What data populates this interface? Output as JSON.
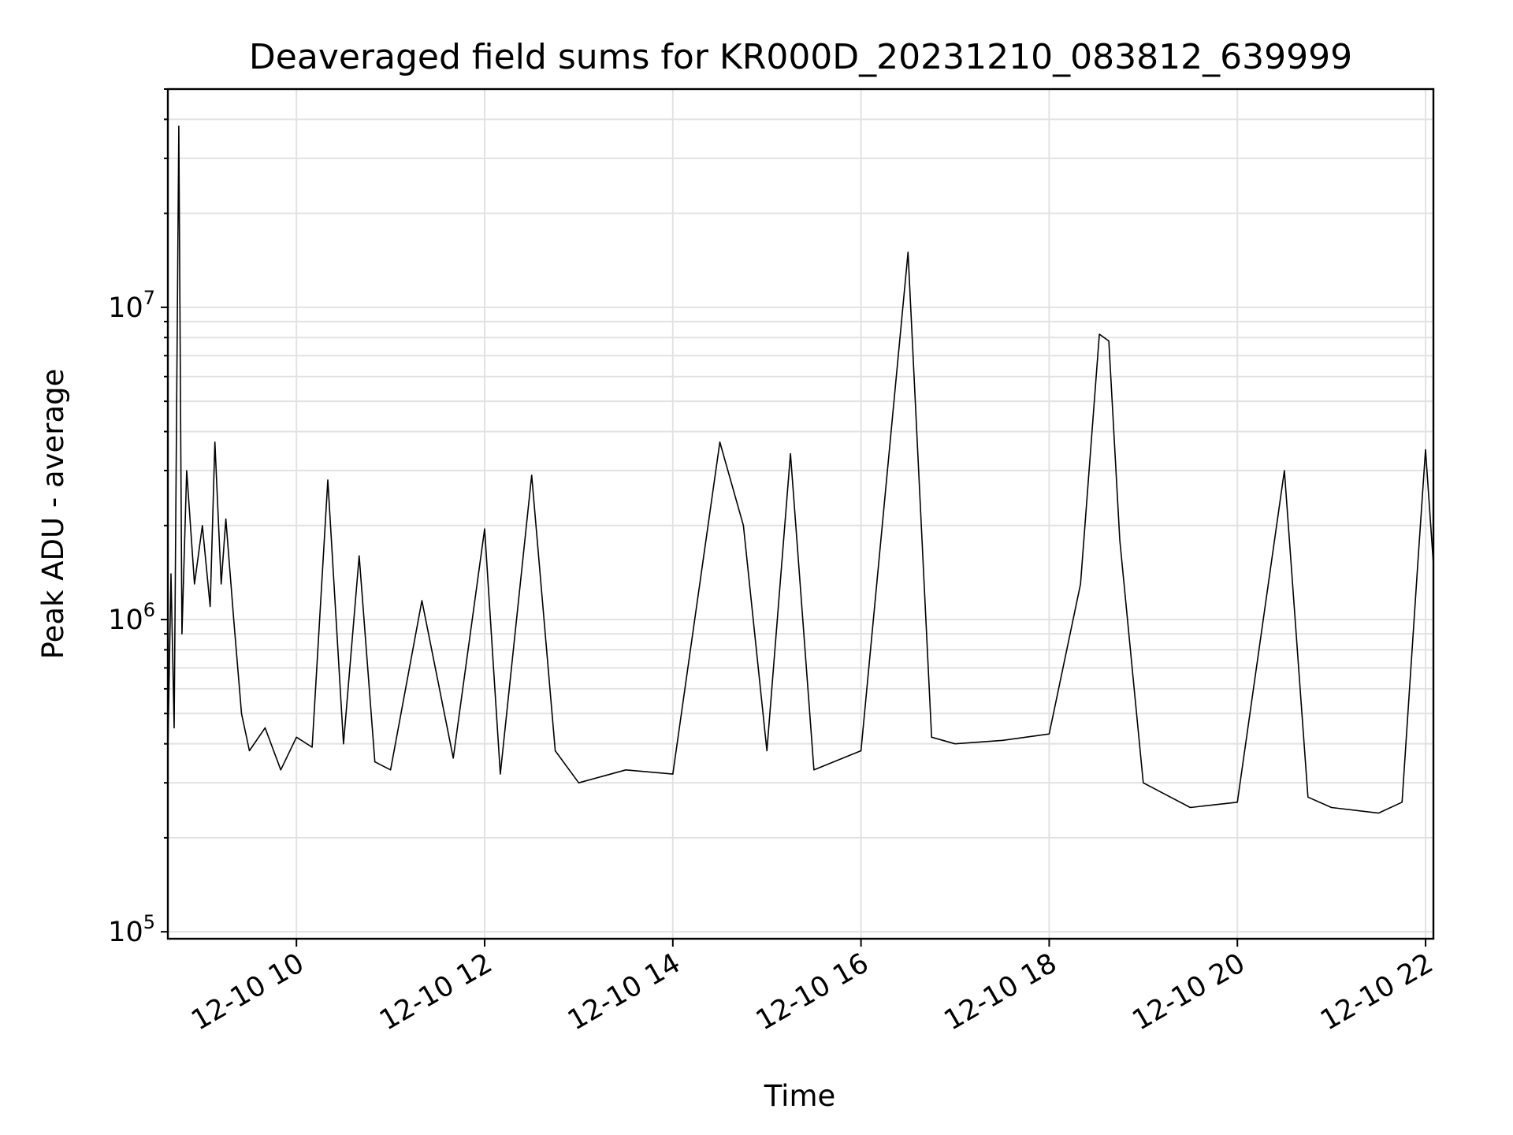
{
  "chart_data": {
    "type": "line",
    "title": "Deaveraged field sums for KR000D_20231210_083812_639999",
    "xlabel": "Time",
    "ylabel": "Peak ADU - average",
    "x_scale": "time",
    "y_scale": "log",
    "xlim": [
      "2023-12-10 08:38",
      "2023-12-10 22:05"
    ],
    "ylim": [
      95000,
      50000000
    ],
    "grid": true,
    "line_color": "#000000",
    "x_ticks": [
      {
        "label": "12-10 10",
        "t": "2023-12-10 10:00"
      },
      {
        "label": "12-10 12",
        "t": "2023-12-10 12:00"
      },
      {
        "label": "12-10 14",
        "t": "2023-12-10 14:00"
      },
      {
        "label": "12-10 16",
        "t": "2023-12-10 16:00"
      },
      {
        "label": "12-10 18",
        "t": "2023-12-10 18:00"
      },
      {
        "label": "12-10 20",
        "t": "2023-12-10 20:00"
      },
      {
        "label": "12-10 22",
        "t": "2023-12-10 22:00"
      }
    ],
    "y_ticks": [
      {
        "base": "10",
        "exp": "5",
        "value": 100000
      },
      {
        "base": "10",
        "exp": "6",
        "value": 1000000
      },
      {
        "base": "10",
        "exp": "7",
        "value": 10000000
      }
    ],
    "series": [
      {
        "values": [
          [
            "2023-12-10 08:38",
            380000
          ],
          [
            "2023-12-10 08:40",
            1400000
          ],
          [
            "2023-12-10 08:42",
            450000
          ],
          [
            "2023-12-10 08:45",
            38000000
          ],
          [
            "2023-12-10 08:47",
            900000
          ],
          [
            "2023-12-10 08:50",
            3000000
          ],
          [
            "2023-12-10 08:55",
            1300000
          ],
          [
            "2023-12-10 09:00",
            2000000
          ],
          [
            "2023-12-10 09:05",
            1100000
          ],
          [
            "2023-12-10 09:08",
            3700000
          ],
          [
            "2023-12-10 09:12",
            1300000
          ],
          [
            "2023-12-10 09:15",
            2100000
          ],
          [
            "2023-12-10 09:20",
            1000000
          ],
          [
            "2023-12-10 09:25",
            500000
          ],
          [
            "2023-12-10 09:30",
            380000
          ],
          [
            "2023-12-10 09:40",
            450000
          ],
          [
            "2023-12-10 09:50",
            330000
          ],
          [
            "2023-12-10 10:00",
            420000
          ],
          [
            "2023-12-10 10:10",
            390000
          ],
          [
            "2023-12-10 10:20",
            2800000
          ],
          [
            "2023-12-10 10:30",
            400000
          ],
          [
            "2023-12-10 10:40",
            1600000
          ],
          [
            "2023-12-10 10:50",
            350000
          ],
          [
            "2023-12-10 11:00",
            330000
          ],
          [
            "2023-12-10 11:20",
            1150000
          ],
          [
            "2023-12-10 11:40",
            360000
          ],
          [
            "2023-12-10 12:00",
            1950000
          ],
          [
            "2023-12-10 12:10",
            320000
          ],
          [
            "2023-12-10 12:30",
            2900000
          ],
          [
            "2023-12-10 12:45",
            380000
          ],
          [
            "2023-12-10 13:00",
            300000
          ],
          [
            "2023-12-10 13:30",
            330000
          ],
          [
            "2023-12-10 14:00",
            320000
          ],
          [
            "2023-12-10 14:30",
            3700000
          ],
          [
            "2023-12-10 14:45",
            2000000
          ],
          [
            "2023-12-10 15:00",
            380000
          ],
          [
            "2023-12-10 15:15",
            3400000
          ],
          [
            "2023-12-10 15:30",
            330000
          ],
          [
            "2023-12-10 16:00",
            380000
          ],
          [
            "2023-12-10 16:30",
            15000000
          ],
          [
            "2023-12-10 16:45",
            420000
          ],
          [
            "2023-12-10 17:00",
            400000
          ],
          [
            "2023-12-10 17:30",
            410000
          ],
          [
            "2023-12-10 18:00",
            430000
          ],
          [
            "2023-12-10 18:20",
            1300000
          ],
          [
            "2023-12-10 18:32",
            8200000
          ],
          [
            "2023-12-10 18:38",
            7800000
          ],
          [
            "2023-12-10 18:45",
            1800000
          ],
          [
            "2023-12-10 19:00",
            300000
          ],
          [
            "2023-12-10 19:30",
            250000
          ],
          [
            "2023-12-10 20:00",
            260000
          ],
          [
            "2023-12-10 20:30",
            3000000
          ],
          [
            "2023-12-10 20:45",
            270000
          ],
          [
            "2023-12-10 21:00",
            250000
          ],
          [
            "2023-12-10 21:30",
            240000
          ],
          [
            "2023-12-10 21:45",
            260000
          ],
          [
            "2023-12-10 21:55",
            1500000
          ],
          [
            "2023-12-10 22:00",
            3500000
          ],
          [
            "2023-12-10 22:05",
            1500000
          ]
        ]
      }
    ]
  }
}
